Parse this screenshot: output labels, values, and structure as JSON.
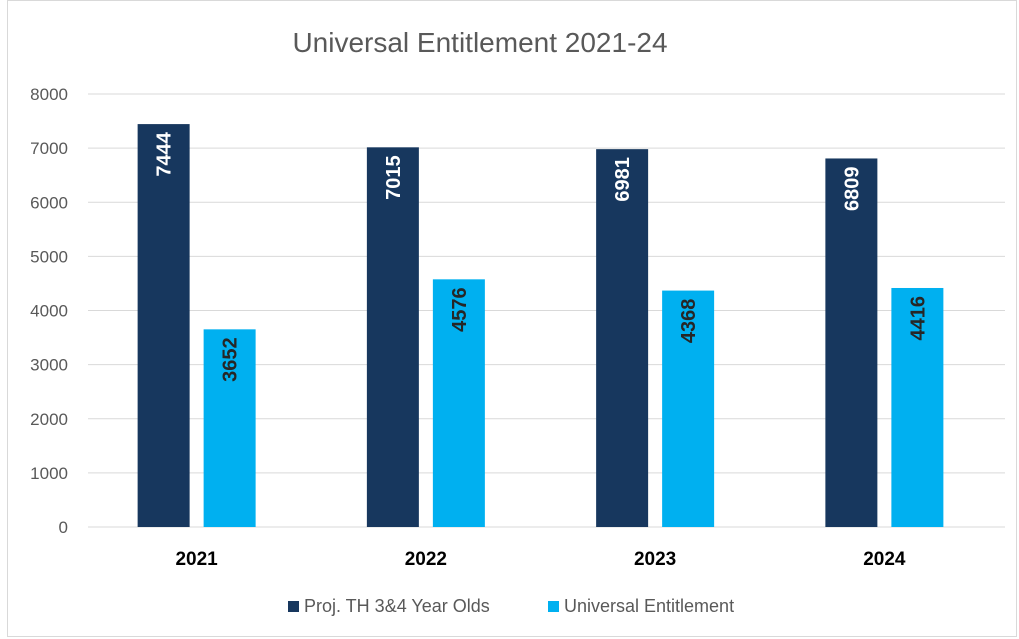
{
  "chart_data": {
    "type": "bar",
    "title": "Universal Entitlement 2021-24",
    "xlabel": "",
    "ylabel": "",
    "categories": [
      "2021",
      "2022",
      "2023",
      "2024"
    ],
    "ylim": [
      0,
      8000
    ],
    "yticks": [
      0,
      1000,
      2000,
      3000,
      4000,
      5000,
      6000,
      7000,
      8000
    ],
    "grid": true,
    "legend_position": "bottom",
    "series": [
      {
        "name": "Proj. TH 3&4 Year Olds",
        "color": "#17375e",
        "label_color": "#ffffff",
        "values": [
          7444,
          7015,
          6981,
          6809
        ]
      },
      {
        "name": "Universal Entitlement",
        "color": "#00b0f0",
        "label_color": "#262626",
        "values": [
          3652,
          4576,
          4368,
          4416
        ]
      }
    ]
  }
}
